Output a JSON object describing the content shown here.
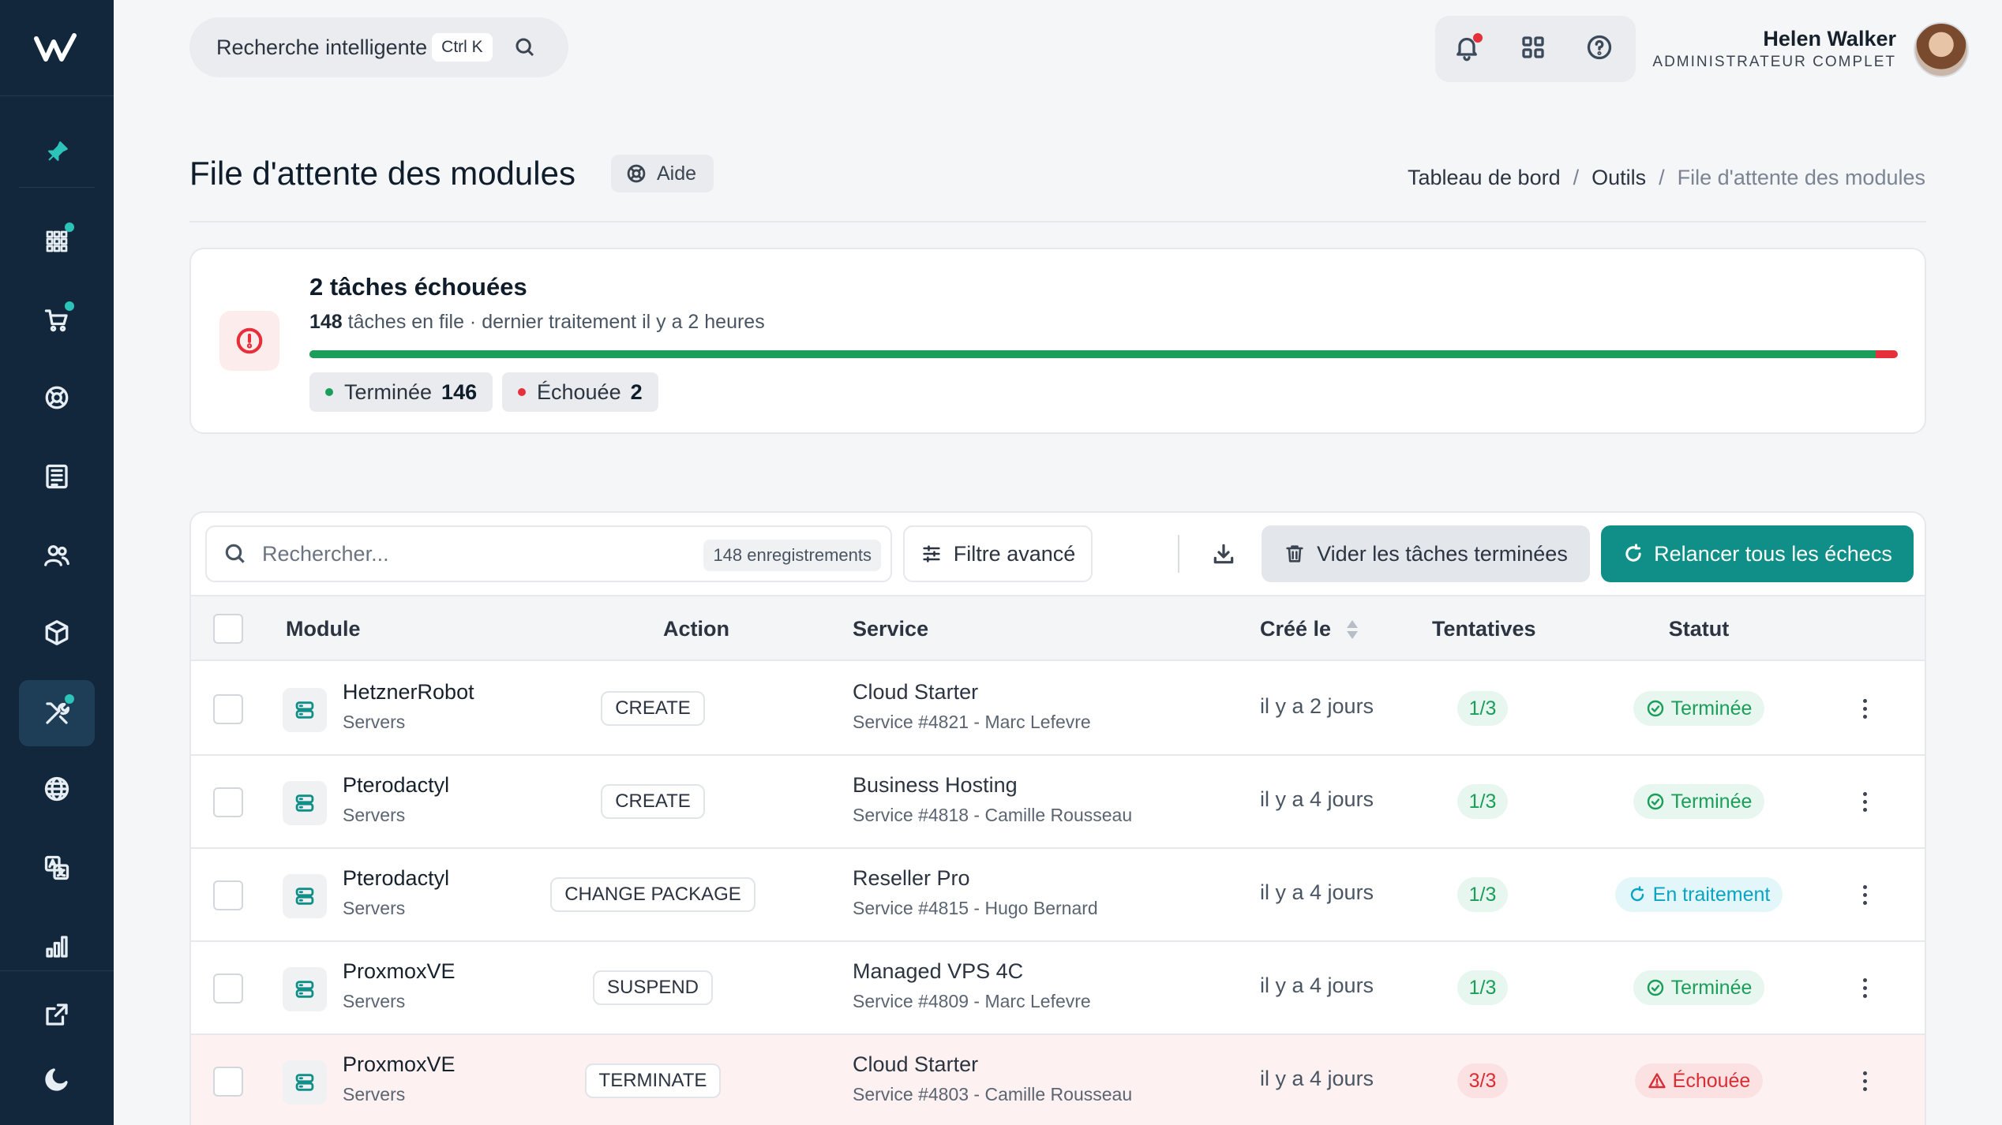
{
  "sidebar": {
    "logo": "w-logo",
    "items": [
      {
        "name": "pin",
        "icon": "pin-icon",
        "dot": false,
        "active": false
      },
      {
        "name": "apps",
        "icon": "grid-icon",
        "dot": true,
        "active": false
      },
      {
        "name": "cart",
        "icon": "cart-icon",
        "dot": true,
        "active": false
      },
      {
        "name": "support",
        "icon": "lifebuoy-icon",
        "dot": false,
        "active": false
      },
      {
        "name": "invoices",
        "icon": "document-icon",
        "dot": false,
        "active": false
      },
      {
        "name": "users",
        "icon": "users-icon",
        "dot": false,
        "active": false
      },
      {
        "name": "products",
        "icon": "cube-icon",
        "dot": false,
        "active": false
      },
      {
        "name": "tools",
        "icon": "tools-icon",
        "dot": true,
        "active": true
      },
      {
        "name": "domains",
        "icon": "globe-icon",
        "dot": false,
        "active": false
      },
      {
        "name": "translations",
        "icon": "translate-icon",
        "dot": false,
        "active": false
      },
      {
        "name": "reports",
        "icon": "chart-icon",
        "dot": false,
        "active": false
      },
      {
        "name": "external",
        "icon": "external-link-icon",
        "dot": false,
        "active": false
      },
      {
        "name": "theme",
        "icon": "moon-icon",
        "dot": false,
        "active": false
      }
    ]
  },
  "header": {
    "search_label": "Recherche intelligente",
    "search_shortcut": "Ctrl K",
    "user_name": "Helen Walker",
    "user_role": "ADMINISTRATEUR COMPLET"
  },
  "page": {
    "title": "File d'attente des modules",
    "help_label": "Aide",
    "breadcrumb": [
      "Tableau de bord",
      "Outils",
      "File d'attente des modules"
    ]
  },
  "summary": {
    "title": "2 tâches échouées",
    "queue_count": "148",
    "queue_text": " tâches en file · dernier traitement il y a 2 heures",
    "completed_fraction": 0.986,
    "chips": [
      {
        "label": "Terminée",
        "count": "146",
        "color": "#1b9e5a"
      },
      {
        "label": "Échouée",
        "count": "2",
        "color": "#e5303b"
      }
    ]
  },
  "toolbar": {
    "search_placeholder": "Rechercher...",
    "records_count": "148 enregistrements",
    "filter_label": "Filtre avancé",
    "clear_label": "Vider les tâches terminées",
    "retry_label": "Relancer tous les échecs"
  },
  "table": {
    "columns": [
      "Module",
      "Action",
      "Service",
      "Créé le",
      "Tentatives",
      "Statut"
    ],
    "rows": [
      {
        "module": "HetznerRobot",
        "category": "Servers",
        "action": "CREATE",
        "service": "Cloud Starter",
        "service_detail": "Service #4821 - Marc Lefevre",
        "created": "il y a 2 jours",
        "attempts": "1/3",
        "status": "Terminée",
        "status_kind": "done"
      },
      {
        "module": "Pterodactyl",
        "category": "Servers",
        "action": "CREATE",
        "service": "Business Hosting",
        "service_detail": "Service #4818 - Camille Rousseau",
        "created": "il y a 4 jours",
        "attempts": "1/3",
        "status": "Terminée",
        "status_kind": "done"
      },
      {
        "module": "Pterodactyl",
        "category": "Servers",
        "action": "CHANGE PACKAGE",
        "service": "Reseller Pro",
        "service_detail": "Service #4815 - Hugo Bernard",
        "created": "il y a 4 jours",
        "attempts": "1/3",
        "status": "En traitement",
        "status_kind": "proc"
      },
      {
        "module": "ProxmoxVE",
        "category": "Servers",
        "action": "SUSPEND",
        "service": "Managed VPS 4C",
        "service_detail": "Service #4809 - Marc Lefevre",
        "created": "il y a 4 jours",
        "attempts": "1/3",
        "status": "Terminée",
        "status_kind": "done"
      },
      {
        "module": "ProxmoxVE",
        "category": "Servers",
        "action": "TERMINATE",
        "service": "Cloud Starter",
        "service_detail": "Service #4803 - Camille Rousseau",
        "created": "il y a 4 jours",
        "attempts": "3/3",
        "status": "Échouée",
        "status_kind": "fail"
      }
    ]
  },
  "colors": {
    "sidebar": "#12273b",
    "accent": "#0f8f87",
    "success": "#1b9e5a",
    "danger": "#e5303b",
    "processing": "#0aa3c2"
  }
}
